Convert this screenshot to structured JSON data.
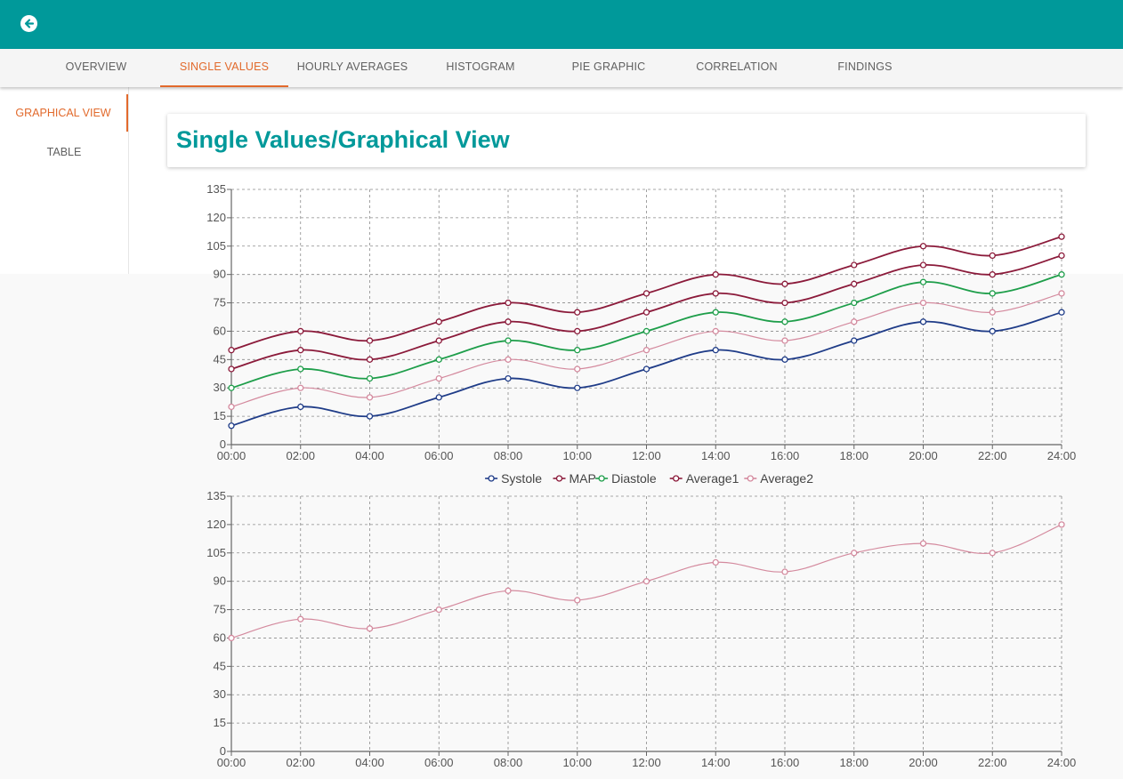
{
  "header": {
    "back_icon": "arrow-left-circle-icon",
    "color": "#00999a"
  },
  "tabs": [
    {
      "label": "OVERVIEW",
      "active": false
    },
    {
      "label": "SINGLE VALUES",
      "active": true
    },
    {
      "label": "HOURLY AVERAGES",
      "active": false
    },
    {
      "label": "HISTOGRAM",
      "active": false
    },
    {
      "label": "PIE GRAPHIC",
      "active": false
    },
    {
      "label": "CORRELATION",
      "active": false
    },
    {
      "label": "FINDINGS",
      "active": false
    }
  ],
  "sidenav": {
    "items": [
      {
        "label": "GRAPHICAL VIEW",
        "active": true
      },
      {
        "label": "TABLE",
        "active": false
      }
    ]
  },
  "page_title": "Single Values/Graphical View",
  "accent_color": "#e26a2c",
  "chart_data": [
    {
      "type": "line",
      "x": [
        "00:00",
        "02:00",
        "04:00",
        "06:00",
        "08:00",
        "10:00",
        "12:00",
        "14:00",
        "16:00",
        "18:00",
        "20:00",
        "22:00",
        "24:00"
      ],
      "ylim": [
        0,
        135
      ],
      "yticks": [
        0,
        15,
        30,
        45,
        60,
        75,
        90,
        105,
        120,
        135
      ],
      "grid": true,
      "legend": "bottom",
      "series": [
        {
          "name": "Systole",
          "color": "#1f3c88",
          "values": [
            10,
            20,
            15,
            25,
            35,
            30,
            40,
            50,
            45,
            55,
            65,
            60,
            70
          ]
        },
        {
          "name": "MAP",
          "color": "#8b1a3a",
          "values": [
            40,
            50,
            45,
            55,
            65,
            60,
            70,
            80,
            75,
            85,
            95,
            90,
            100
          ]
        },
        {
          "name": "Diastole",
          "color": "#1e9e4a",
          "values": [
            30,
            40,
            35,
            45,
            55,
            50,
            60,
            70,
            65,
            75,
            86,
            80,
            90
          ]
        },
        {
          "name": "Average1",
          "color": "#8b1a3a",
          "values": [
            50,
            60,
            55,
            65,
            75,
            70,
            80,
            90,
            85,
            95,
            105,
            100,
            110
          ]
        },
        {
          "name": "Average2",
          "color": "#d48a9e",
          "values": [
            20,
            30,
            25,
            35,
            45,
            40,
            50,
            60,
            55,
            65,
            75,
            70,
            80
          ]
        }
      ]
    },
    {
      "type": "line",
      "x": [
        "00:00",
        "02:00",
        "04:00",
        "06:00",
        "08:00",
        "10:00",
        "12:00",
        "14:00",
        "16:00",
        "18:00",
        "20:00",
        "22:00",
        "24:00"
      ],
      "ylim": [
        0,
        135
      ],
      "yticks": [
        0,
        15,
        30,
        45,
        60,
        75,
        90,
        105,
        120,
        135
      ],
      "grid": true,
      "series": [
        {
          "color": "#d48a9e",
          "values": [
            60,
            70,
            65,
            75,
            85,
            80,
            90,
            100,
            95,
            105,
            110,
            105,
            120
          ]
        }
      ]
    }
  ]
}
